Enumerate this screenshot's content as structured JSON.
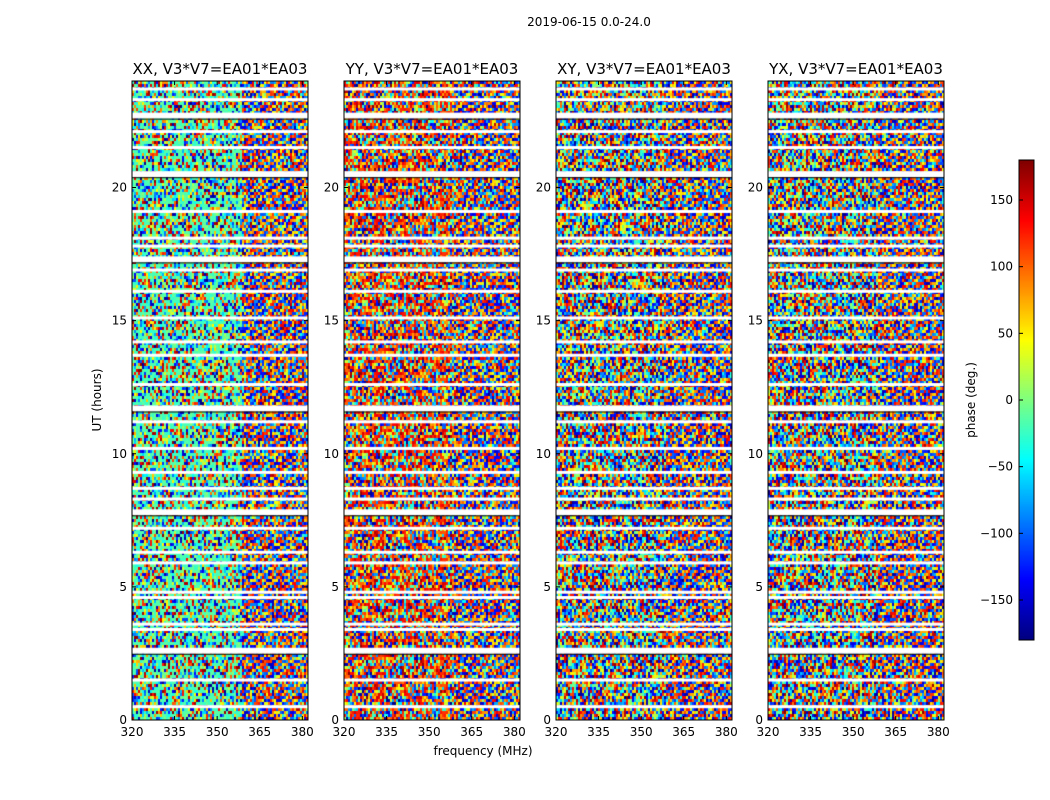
{
  "figure_title": "2019-06-15 0.0-24.0",
  "chart_data": {
    "type": "heatmap",
    "colormap": "jet",
    "xlabel": "frequency (MHz)",
    "ylabel": "UT (hours)",
    "xlim": [
      320,
      382
    ],
    "ylim": [
      0,
      24
    ],
    "x_ticks": [
      320,
      335,
      350,
      365,
      380
    ],
    "y_ticks": [
      0,
      5,
      10,
      15,
      20
    ],
    "panels": [
      {
        "title": "XX, V3*V7=EA01*EA03"
      },
      {
        "title": "YY, V3*V7=EA01*EA03"
      },
      {
        "title": "XY, V3*V7=EA01*EA03"
      },
      {
        "title": "YX, V3*V7=EA01*EA03"
      }
    ],
    "colorbar": {
      "label": "phase (deg.)",
      "range": [
        -180,
        180
      ],
      "ticks": [
        150,
        100,
        50,
        0,
        -50,
        -100,
        -150
      ],
      "tick_labels": [
        "150",
        "100",
        "50",
        "0",
        "−50",
        "−100",
        "−150"
      ]
    },
    "flagged_gaps_ut": [
      0.5,
      1.5,
      2.6,
      3.4,
      3.6,
      4.6,
      4.8,
      5.9,
      6.3,
      7.2,
      7.8,
      8.3,
      8.7,
      9.3,
      10.2,
      11.2,
      11.7,
      12.6,
      13.7,
      14.2,
      15.1,
      16.1,
      16.9,
      17.3,
      17.8,
      18.1,
      19.1,
      20.5,
      21.5,
      22.1,
      22.7,
      23.3,
      23.7
    ],
    "flagged_gaps_wide_ut": [
      2.6,
      7.8,
      11.7,
      17.3,
      20.5,
      22.7
    ]
  }
}
